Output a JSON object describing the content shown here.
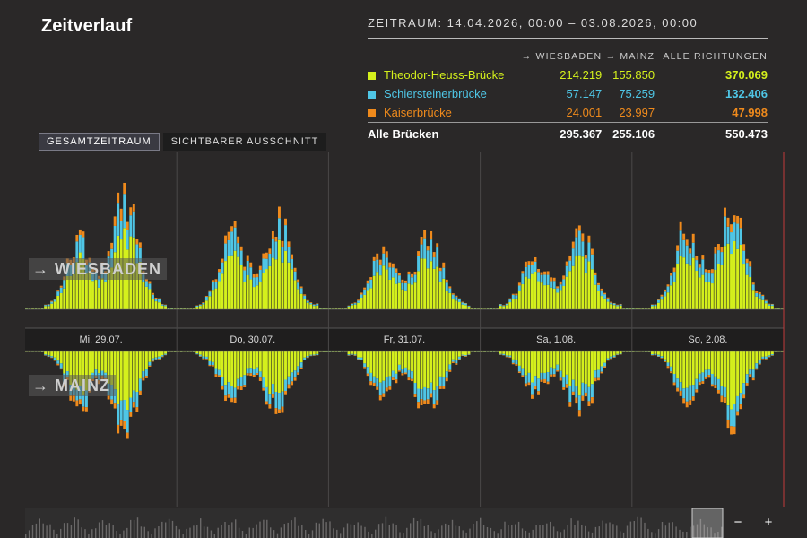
{
  "header": {
    "title": "Zeitverlauf",
    "range": "ZEITRAUM: 14.04.2026, 00:00 – 03.08.2026, 00:00"
  },
  "summary": {
    "columns": [
      "→ WIESBADEN",
      "→ MAINZ",
      "ALLE RICHTUNGEN"
    ],
    "rows": [
      {
        "name": "Theodor-Heuss-Brücke",
        "color": "#d4f01c",
        "wiesbaden": "214.219",
        "mainz": "155.850",
        "all": "370.069"
      },
      {
        "name": "Schiersteinerbrücke",
        "color": "#4fc6e6",
        "wiesbaden": "57.147",
        "mainz": "75.259",
        "all": "132.406"
      },
      {
        "name": "Kaiserbrücke",
        "color": "#ef8a1c",
        "wiesbaden": "24.001",
        "mainz": "23.997",
        "all": "47.998"
      }
    ],
    "total": {
      "name": "Alle Brücken",
      "wiesbaden": "295.367",
      "mainz": "255.106",
      "all": "550.473"
    }
  },
  "tabs": {
    "full": "GESAMTZEITRAUM",
    "visible": "SICHTBARER AUSSCHNITT"
  },
  "directions": {
    "up": "WIESBADEN",
    "down": "MAINZ"
  },
  "zoom": {
    "minus": "−",
    "plus": "+"
  },
  "chart_data": {
    "type": "bar",
    "stacked": true,
    "diverging": true,
    "x_unit": "hour",
    "categories": [
      "Mi, 29.07.",
      "Do, 30.07.",
      "Fr, 31.07.",
      "Sa, 1.08.",
      "So, 2.08."
    ],
    "days": [
      {
        "label": "Mi, 29.07.",
        "wiesbaden_morning": 0.55,
        "wiesbaden_evening": 0.85,
        "mainz_morning": 0.55,
        "mainz_evening": 0.7
      },
      {
        "label": "Do, 30.07.",
        "wiesbaden_morning": 0.62,
        "wiesbaden_evening": 0.68,
        "mainz_morning": 0.48,
        "mainz_evening": 0.55
      },
      {
        "label": "Fr, 31.07.",
        "wiesbaden_morning": 0.45,
        "wiesbaden_evening": 0.55,
        "mainz_morning": 0.4,
        "mainz_evening": 0.55
      },
      {
        "label": "Sa, 1.08.",
        "wiesbaden_morning": 0.4,
        "wiesbaden_evening": 0.55,
        "mainz_morning": 0.38,
        "mainz_evening": 0.55
      },
      {
        "label": "So, 2.08.",
        "wiesbaden_morning": 0.6,
        "wiesbaden_evening": 0.75,
        "mainz_morning": 0.5,
        "mainz_evening": 0.7
      }
    ],
    "series": [
      {
        "name": "Theodor-Heuss-Brücke",
        "color": "#d4f01c",
        "share": 0.67
      },
      {
        "name": "Schiersteinerbrücke",
        "color": "#4fc6e6",
        "share": 0.24
      },
      {
        "name": "Kaiserbrücke",
        "color": "#ef8a1c",
        "share": 0.09
      }
    ],
    "grid": true,
    "legend": "top-right"
  }
}
